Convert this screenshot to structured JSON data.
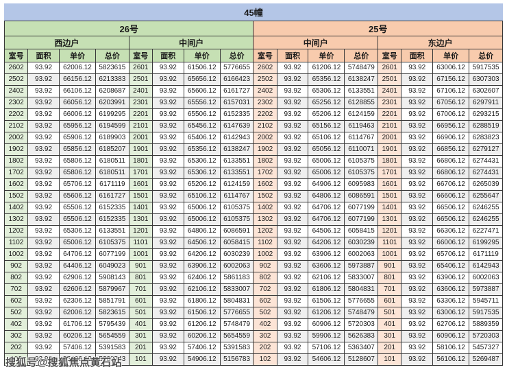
{
  "title": "45幢",
  "watermark": "搜狐号@搜狐焦点黄石站",
  "colors": {
    "title_bg": "#b4c6e7",
    "section26_bg": "#c6e0b4",
    "section26_room_bg": "#e2efda",
    "section25_bg": "#f8cbad",
    "section25_room_bg": "#fce4d6",
    "stripe_bg": "#efefef",
    "border": "#383838"
  },
  "columns": [
    "室号",
    "面积",
    "单价",
    "总价"
  ],
  "sections": [
    {
      "label": "26号",
      "groups": [
        {
          "label": "西边户"
        },
        {
          "label": "中间户"
        }
      ]
    },
    {
      "label": "25号",
      "groups": [
        {
          "label": "中间户"
        },
        {
          "label": "东边户"
        }
      ]
    }
  ],
  "rows": [
    [
      [
        "2602",
        "93.92",
        "62006.12",
        "5823615"
      ],
      [
        "2601",
        "93.92",
        "61506.12",
        "5776655"
      ],
      [
        "2602",
        "93.92",
        "61206.12",
        "5748479"
      ],
      [
        "2601",
        "93.92",
        "63006.12",
        "5917535"
      ]
    ],
    [
      [
        "2502",
        "93.92",
        "66156.12",
        "6213383"
      ],
      [
        "2501",
        "93.92",
        "65656.12",
        "6166423"
      ],
      [
        "2502",
        "93.92",
        "65356.12",
        "6138247"
      ],
      [
        "2501",
        "93.92",
        "67156.12",
        "6307303"
      ]
    ],
    [
      [
        "2402",
        "93.92",
        "66106.12",
        "6208687"
      ],
      [
        "2401",
        "93.92",
        "65606.12",
        "6161727"
      ],
      [
        "2402",
        "93.92",
        "65306.12",
        "6133551"
      ],
      [
        "2401",
        "93.92",
        "67106.12",
        "6302607"
      ]
    ],
    [
      [
        "2302",
        "93.92",
        "66056.12",
        "6203991"
      ],
      [
        "2301",
        "93.92",
        "65556.12",
        "6157031"
      ],
      [
        "2302",
        "93.92",
        "65256.12",
        "6128855"
      ],
      [
        "2301",
        "93.92",
        "67056.12",
        "6297911"
      ]
    ],
    [
      [
        "2202",
        "93.92",
        "66006.12",
        "6199295"
      ],
      [
        "2201",
        "93.92",
        "65506.12",
        "6152335"
      ],
      [
        "2202",
        "93.92",
        "65206.12",
        "6124159"
      ],
      [
        "2201",
        "93.92",
        "67006.12",
        "6293215"
      ]
    ],
    [
      [
        "2102",
        "93.92",
        "65956.12",
        "6194599"
      ],
      [
        "2101",
        "93.92",
        "65456.12",
        "6147639"
      ],
      [
        "2102",
        "93.92",
        "65156.12",
        "6119463"
      ],
      [
        "2101",
        "93.92",
        "66956.12",
        "6288519"
      ]
    ],
    [
      [
        "2002",
        "93.92",
        "65906.12",
        "6189903"
      ],
      [
        "2001",
        "93.92",
        "65406.12",
        "6142943"
      ],
      [
        "2002",
        "93.92",
        "65106.12",
        "6114767"
      ],
      [
        "2001",
        "93.92",
        "66906.12",
        "6283823"
      ]
    ],
    [
      [
        "1902",
        "93.92",
        "65856.12",
        "6185207"
      ],
      [
        "1901",
        "93.92",
        "65356.12",
        "6138247"
      ],
      [
        "1902",
        "93.92",
        "65056.12",
        "6110071"
      ],
      [
        "1901",
        "93.92",
        "66856.12",
        "6279127"
      ]
    ],
    [
      [
        "1802",
        "93.92",
        "65806.12",
        "6180511"
      ],
      [
        "1801",
        "93.92",
        "65306.12",
        "6133551"
      ],
      [
        "1802",
        "93.92",
        "65006.12",
        "6105375"
      ],
      [
        "1801",
        "93.92",
        "66806.12",
        "6274431"
      ]
    ],
    [
      [
        "1702",
        "93.92",
        "65806.12",
        "6180511"
      ],
      [
        "1701",
        "93.92",
        "65306.12",
        "6133551"
      ],
      [
        "1702",
        "93.92",
        "65006.12",
        "6105375"
      ],
      [
        "1701",
        "93.92",
        "66806.12",
        "6274431"
      ]
    ],
    [
      [
        "1602",
        "93.92",
        "65706.12",
        "6171119"
      ],
      [
        "1601",
        "93.92",
        "65206.12",
        "6124159"
      ],
      [
        "1602",
        "93.92",
        "64906.12",
        "6095983"
      ],
      [
        "1601",
        "93.92",
        "66706.12",
        "6265039"
      ]
    ],
    [
      [
        "1502",
        "93.92",
        "65606.12",
        "6161727"
      ],
      [
        "1501",
        "93.92",
        "65106.12",
        "6114767"
      ],
      [
        "1502",
        "93.92",
        "64806.12",
        "6086591"
      ],
      [
        "1501",
        "93.92",
        "66606.12",
        "6255647"
      ]
    ],
    [
      [
        "1402",
        "93.92",
        "65506.12",
        "6152335"
      ],
      [
        "1401",
        "93.92",
        "65006.12",
        "6105375"
      ],
      [
        "1402",
        "93.92",
        "64706.12",
        "6077199"
      ],
      [
        "1401",
        "93.92",
        "66506.12",
        "6246255"
      ]
    ],
    [
      [
        "1302",
        "93.92",
        "65506.12",
        "6152335"
      ],
      [
        "1301",
        "93.92",
        "65006.12",
        "6105375"
      ],
      [
        "1302",
        "93.92",
        "64706.12",
        "6077199"
      ],
      [
        "1301",
        "93.92",
        "66506.12",
        "6246255"
      ]
    ],
    [
      [
        "1202",
        "93.92",
        "65306.12",
        "6133551"
      ],
      [
        "1201",
        "93.92",
        "64806.12",
        "6086591"
      ],
      [
        "1202",
        "93.92",
        "64506.12",
        "6058415"
      ],
      [
        "1201",
        "93.92",
        "66306.12",
        "6227471"
      ]
    ],
    [
      [
        "1102",
        "93.92",
        "65006.12",
        "6105375"
      ],
      [
        "1101",
        "93.92",
        "64506.12",
        "6058415"
      ],
      [
        "1102",
        "93.92",
        "64206.12",
        "6030239"
      ],
      [
        "1101",
        "93.92",
        "66006.12",
        "6199295"
      ]
    ],
    [
      [
        "1002",
        "93.92",
        "64706.12",
        "6077199"
      ],
      [
        "1001",
        "93.92",
        "64206.12",
        "6030239"
      ],
      [
        "1002",
        "93.92",
        "63906.12",
        "6002063"
      ],
      [
        "1001",
        "93.92",
        "65706.12",
        "6171119"
      ]
    ],
    [
      [
        "902",
        "93.92",
        "64406.12",
        "6049023"
      ],
      [
        "901",
        "93.92",
        "63906.12",
        "6002063"
      ],
      [
        "902",
        "93.92",
        "63606.12",
        "5973887"
      ],
      [
        "901",
        "93.92",
        "65406.12",
        "6142943"
      ]
    ],
    [
      [
        "802",
        "93.92",
        "62906.12",
        "5908143"
      ],
      [
        "801",
        "93.92",
        "62406.12",
        "5861183"
      ],
      [
        "802",
        "93.92",
        "62106.12",
        "5833007"
      ],
      [
        "801",
        "93.92",
        "63906.12",
        "6002063"
      ]
    ],
    [
      [
        "702",
        "93.92",
        "62606.12",
        "5879967"
      ],
      [
        "701",
        "93.92",
        "62106.12",
        "5833007"
      ],
      [
        "702",
        "93.92",
        "61806.12",
        "5804831"
      ],
      [
        "701",
        "93.92",
        "63606.12",
        "5973887"
      ]
    ],
    [
      [
        "602",
        "93.92",
        "62306.12",
        "5851791"
      ],
      [
        "601",
        "93.92",
        "61806.12",
        "5804831"
      ],
      [
        "602",
        "93.92",
        "61506.12",
        "5776655"
      ],
      [
        "601",
        "93.92",
        "63306.12",
        "5945711"
      ]
    ],
    [
      [
        "502",
        "93.92",
        "62006.12",
        "5823615"
      ],
      [
        "501",
        "93.92",
        "61506.12",
        "5776655"
      ],
      [
        "502",
        "93.92",
        "61206.12",
        "5748479"
      ],
      [
        "501",
        "93.92",
        "63006.12",
        "5917535"
      ]
    ],
    [
      [
        "402",
        "93.92",
        "61706.12",
        "5795439"
      ],
      [
        "401",
        "93.92",
        "61206.12",
        "5748479"
      ],
      [
        "402",
        "93.92",
        "60906.12",
        "5720303"
      ],
      [
        "401",
        "93.92",
        "62706.12",
        "5889359"
      ]
    ],
    [
      [
        "302",
        "93.92",
        "60206.12",
        "5654559"
      ],
      [
        "301",
        "93.92",
        "60206.12",
        "5654559"
      ],
      [
        "302",
        "93.92",
        "59906.12",
        "5626383"
      ],
      [
        "301",
        "93.92",
        "60906.12",
        "5720303"
      ]
    ],
    [
      [
        "202",
        "93.92",
        "57406.12",
        "5391583"
      ],
      [
        "201",
        "93.92",
        "57406.12",
        "5391583"
      ],
      [
        "202",
        "93.92",
        "57106.12",
        "5363407"
      ],
      [
        "201",
        "93.92",
        "58106.12",
        "5457327"
      ]
    ],
    [
      [
        "102",
        "93.92",
        "55406.12",
        "5203743"
      ],
      [
        "101",
        "93.92",
        "54906.12",
        "5156783"
      ],
      [
        "102",
        "93.92",
        "54606.12",
        "5128607"
      ],
      [
        "101",
        "93.92",
        "56106.12",
        "5269487"
      ]
    ]
  ]
}
